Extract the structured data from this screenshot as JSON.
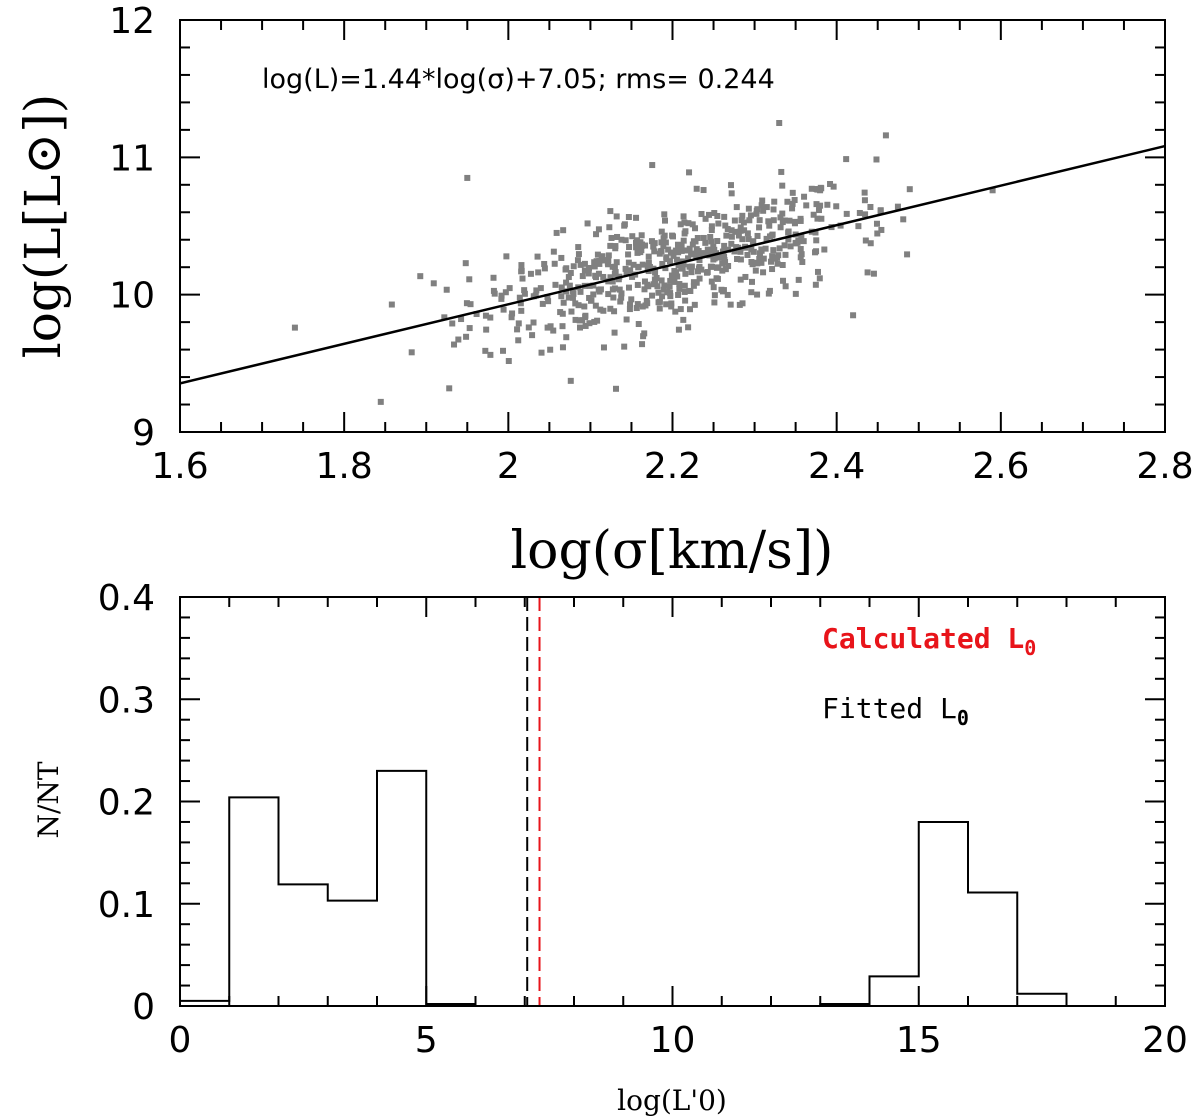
{
  "chart_data": [
    {
      "type": "scatter",
      "xlabel": "log(σ[km/s])",
      "ylabel": "log(L[L⊙])",
      "xlim": [
        1.6,
        2.8
      ],
      "ylim": [
        9,
        12
      ],
      "xticks": [
        1.6,
        1.8,
        2.0,
        2.2,
        2.4,
        2.6,
        2.8
      ],
      "xtick_labels": [
        "1.6",
        "1.8",
        "2",
        "2.2",
        "2.4",
        "2.6",
        "2.8"
      ],
      "yticks": [
        9,
        10,
        11,
        12
      ],
      "ytick_labels": [
        "9",
        "10",
        "11",
        "12"
      ],
      "annotation": "log(L)=1.44*log(σ)+7.05; rms=  0.244",
      "fit": {
        "slope": 1.44,
        "intercept": 7.05,
        "rms": 0.244
      },
      "point_color": "#808080",
      "fit_color": "#000000",
      "n_points": 600,
      "outliers": [
        [
          1.95,
          10.85
        ],
        [
          2.33,
          11.25
        ],
        [
          2.42,
          9.85
        ],
        [
          2.46,
          11.16
        ],
        [
          1.74,
          9.76
        ],
        [
          2.59,
          10.76
        ]
      ]
    },
    {
      "type": "bar",
      "subtype": "step-histogram",
      "xlabel": "log(L'0)",
      "ylabel": "N/NT",
      "xlim": [
        0,
        20
      ],
      "ylim": [
        0,
        0.4
      ],
      "xticks": [
        0,
        5,
        10,
        15,
        20
      ],
      "xtick_labels": [
        "0",
        "5",
        "10",
        "15",
        "20"
      ],
      "yticks": [
        0,
        0.1,
        0.2,
        0.3,
        0.4
      ],
      "ytick_labels": [
        "0",
        "0.1",
        "0.2",
        "0.3",
        "0.4"
      ],
      "bin_edges": [
        0,
        1,
        2,
        3,
        4,
        5,
        6,
        7,
        8,
        9,
        10,
        11,
        12,
        13,
        14,
        15,
        16,
        17,
        18,
        19,
        20
      ],
      "values": [
        0.005,
        0.204,
        0.119,
        0.103,
        0.23,
        0.002,
        0,
        0,
        0,
        0,
        0,
        0,
        0,
        0.002,
        0.029,
        0.18,
        0.111,
        0.012,
        0,
        0
      ],
      "vlines": [
        {
          "label": "Fitted L0",
          "x": 7.05,
          "color": "#000000"
        },
        {
          "label": "Calculated L0",
          "x": 7.3,
          "color": "#e8141a"
        }
      ],
      "legend": [
        {
          "label": "Calculated L",
          "sub": "0",
          "color": "#e8141a",
          "bold": true
        },
        {
          "label": "Fitted L",
          "sub": "0",
          "color": "#000000",
          "bold": false
        }
      ]
    }
  ]
}
